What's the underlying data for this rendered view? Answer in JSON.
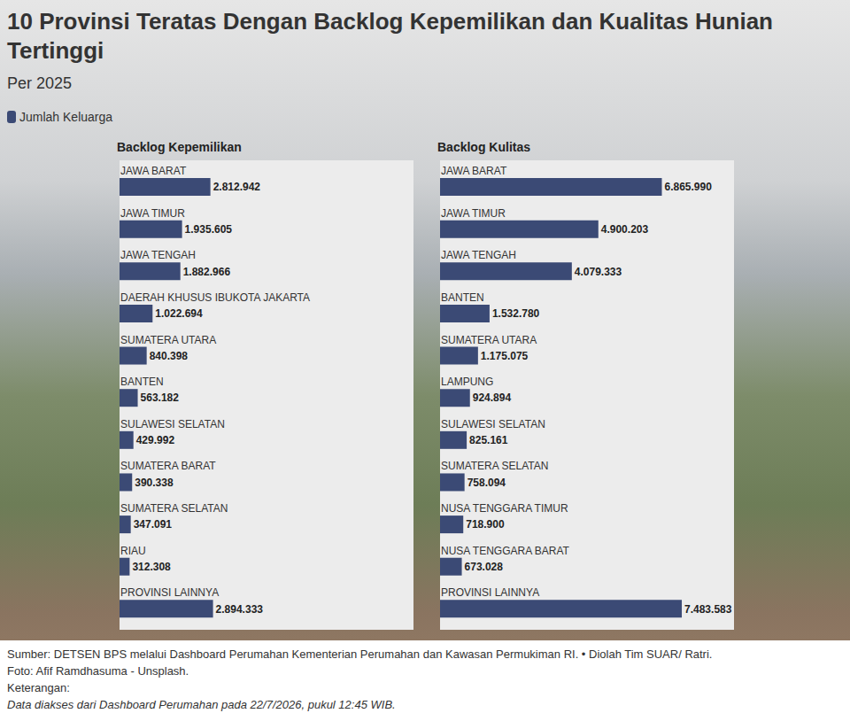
{
  "title": "10 Provinsi Teratas Dengan Backlog Kepemilikan dan Kualitas Hunian Tertinggi",
  "subtitle": "Per 2025",
  "legend": "top-left",
  "notes": [
    "Sumber: DETSEN BPS melalui Dashboard Perumahan Kementerian Perumahan dan Kawasan Permukiman RI. • Diolah Tim SUAR/ Ratri.",
    "Foto: Afif Ramdhasuma - Unsplash.",
    "Keterangan:",
    "Data diakses dari Dashboard Perumahan pada 22/7/2026, pukul 12:45 WIB."
  ],
  "chart_data": [
    {
      "type": "bar",
      "title": "Backlog Kepemilikan",
      "orientation": "horizontal",
      "data_labels": true,
      "tick_labels": false,
      "xlim": [
        0,
        9100000
      ],
      "categories": [
        "JAWA BARAT",
        "JAWA TIMUR",
        "JAWA TENGAH",
        "DAERAH KHUSUS IBUKOTA JAKARTA",
        "SUMATERA UTARA",
        "BANTEN",
        "SULAWESI SELATAN",
        "SUMATERA BARAT",
        "SUMATERA SELATAN",
        "RIAU",
        "PROVINSI LAINNYA"
      ],
      "series": [
        {
          "name": "Jumlah Keluarga",
          "color": "#3b4a75",
          "values": [
            2812942,
            1935605,
            1882966,
            1022694,
            840398,
            563182,
            429992,
            390338,
            347091,
            312308,
            2894333
          ],
          "value_labels": [
            "2.812.942",
            "1.935.605",
            "1.882.966",
            "1.022.694",
            "840.398",
            "563.182",
            "429.992",
            "390.338",
            "347.091",
            "312.308",
            "2.894.333"
          ]
        }
      ]
    },
    {
      "type": "bar",
      "title": "Backlog Kulitas",
      "orientation": "horizontal",
      "data_labels": true,
      "tick_labels": false,
      "xlim": [
        0,
        9100000
      ],
      "categories": [
        "JAWA BARAT",
        "JAWA TIMUR",
        "JAWA TENGAH",
        "BANTEN",
        "SUMATERA UTARA",
        "LAMPUNG",
        "SULAWESI SELATAN",
        "SUMATERA SELATAN",
        "NUSA TENGGARA TIMUR",
        "NUSA TENGGARA BARAT",
        "PROVINSI LAINNYA"
      ],
      "series": [
        {
          "name": "Jumlah Keluarga",
          "color": "#3b4a75",
          "values": [
            6865990,
            4900203,
            4079333,
            1532780,
            1175075,
            924894,
            825161,
            758094,
            718900,
            673028,
            7483583
          ],
          "value_labels": [
            "6.865.990",
            "4.900.203",
            "4.079.333",
            "1.532.780",
            "1.175.075",
            "924.894",
            "825.161",
            "758.094",
            "718.900",
            "673.028",
            "7.483.583"
          ]
        }
      ]
    }
  ]
}
